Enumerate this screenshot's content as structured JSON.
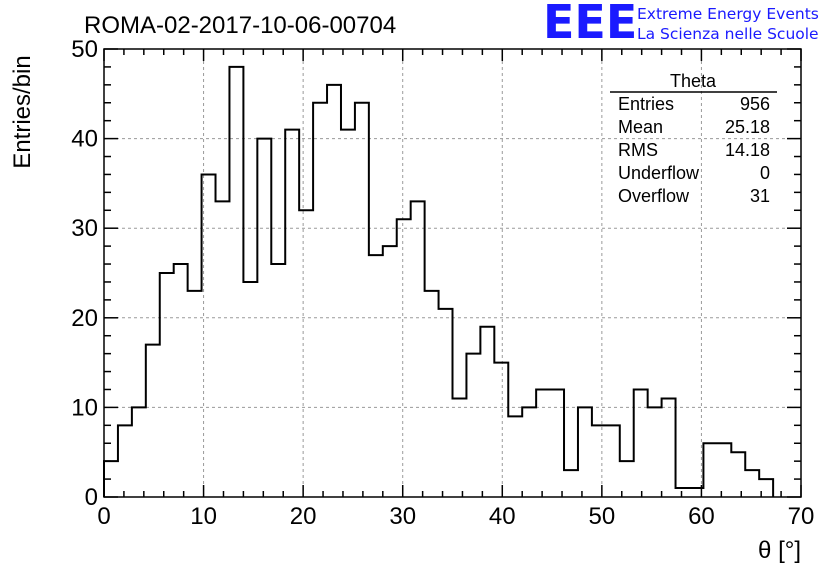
{
  "chart_data": {
    "type": "bar",
    "title": "ROMA-02-2017-10-06-00704",
    "xlabel": "θ [°]",
    "ylabel": "Entries/bin",
    "xlim": [
      0,
      70
    ],
    "ylim": [
      0,
      50
    ],
    "x_ticks": [
      0,
      10,
      20,
      30,
      40,
      50,
      60,
      70
    ],
    "y_ticks": [
      0,
      10,
      20,
      30,
      40,
      50
    ],
    "grid": true,
    "bin_width": 1.4,
    "bin_edges_start": 0,
    "values": [
      4,
      8,
      10,
      17,
      25,
      26,
      23,
      36,
      33,
      48,
      24,
      40,
      26,
      41,
      32,
      44,
      46,
      41,
      44,
      27,
      28,
      31,
      33,
      23,
      21,
      11,
      16,
      19,
      15,
      9,
      10,
      12,
      12,
      3,
      10,
      8,
      8,
      4,
      12,
      10,
      11,
      1,
      1,
      6,
      6,
      5,
      3,
      2
    ]
  },
  "stats_box": {
    "title": "Theta",
    "rows": [
      {
        "label": "Entries",
        "value": "956"
      },
      {
        "label": "Mean",
        "value": "25.18"
      },
      {
        "label": "RMS",
        "value": "14.18"
      },
      {
        "label": "Underflow",
        "value": "0"
      },
      {
        "label": "Overflow",
        "value": "31"
      }
    ]
  },
  "logo": {
    "mark": "EEE",
    "line1": "Extreme Energy Events",
    "line2": "La Scienza nelle Scuole",
    "color": "#1a1aff"
  }
}
